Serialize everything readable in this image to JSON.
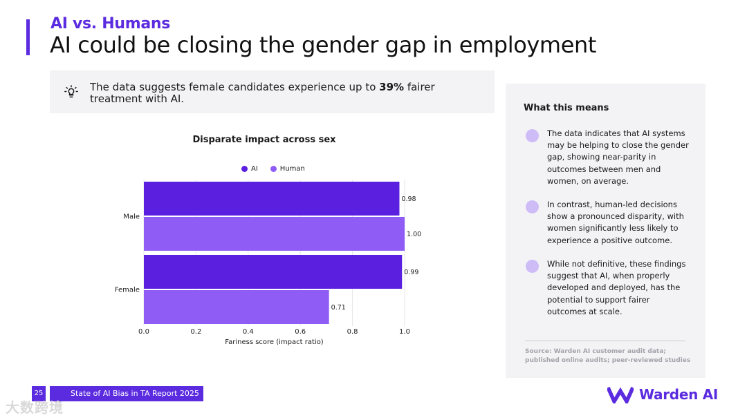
{
  "header": {
    "eyebrow": "AI vs. Humans",
    "title": "AI could be closing the gender gap in employment"
  },
  "callout": {
    "icon": "lightbulb-icon",
    "text_before": "The data suggests female candidates experience up to ",
    "text_bold": "39%",
    "text_after": " fairer treatment with AI."
  },
  "chart_data": {
    "type": "bar",
    "orientation": "horizontal",
    "title": "Disparate impact across sex",
    "categories": [
      "Male",
      "Female"
    ],
    "series": [
      {
        "name": "AI",
        "values": [
          0.98,
          0.99
        ],
        "labels": [
          "0.98",
          "0.99"
        ],
        "color": "#5b1fe0"
      },
      {
        "name": "Human",
        "values": [
          1.0,
          0.71
        ],
        "labels": [
          "1.00",
          "0.71"
        ],
        "color": "#8f5cf5"
      }
    ],
    "xlabel": "Fariness score (impact ratio)",
    "ylabel": "",
    "xlim": [
      0,
      1.0
    ],
    "xticks": [
      "0.0",
      "0.2",
      "0.4",
      "0.6",
      "0.8",
      "1.0"
    ],
    "grid": true,
    "legend": "top-center"
  },
  "panel": {
    "title": "What this means",
    "items": [
      "The data indicates that AI systems may be helping to close the gender gap, showing near-parity in outcomes between men and women, on average.",
      "In contrast, human-led decisions show a pronounced disparity, with women significantly less likely to experience a positive outcome.",
      "While not definitive, these findings suggest that AI, when properly developed and deployed, has the potential to support fairer outcomes at scale."
    ],
    "source": "Source: Warden AI customer audit data; published online audits; peer-reviewed studies"
  },
  "footer": {
    "page_number": "25",
    "report_title": "State of AI Bias in TA Report 2025"
  },
  "watermark": "大数跨境",
  "brand": {
    "name": "Warden AI",
    "color": "#5b2be0"
  }
}
